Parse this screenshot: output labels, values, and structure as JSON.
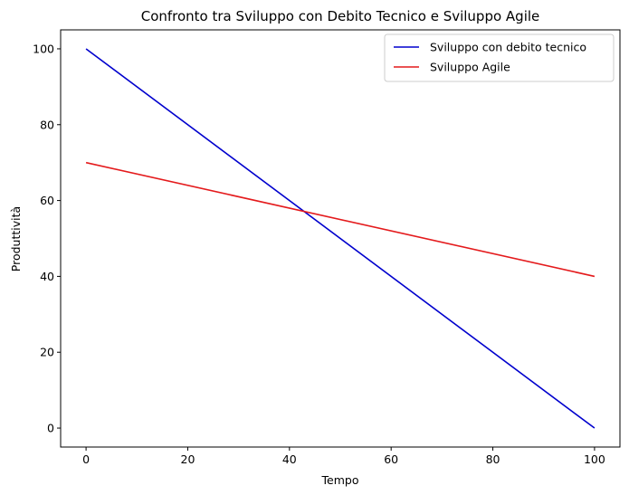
{
  "chart_data": {
    "type": "line",
    "title": "Confronto tra Sviluppo con Debito Tecnico e Sviluppo Agile",
    "xlabel": "Tempo",
    "ylabel": "Produttività",
    "xlim": [
      -5,
      105
    ],
    "ylim": [
      -5,
      105
    ],
    "xticks": [
      0,
      20,
      40,
      60,
      80,
      100
    ],
    "yticks": [
      0,
      20,
      40,
      60,
      80,
      100
    ],
    "grid": false,
    "legend_position": "top-right",
    "series": [
      {
        "name": "Sviluppo con debito tecnico",
        "color": "#0000cd",
        "x": [
          0,
          100
        ],
        "y": [
          100,
          0
        ]
      },
      {
        "name": "Sviluppo Agile",
        "color": "#e41a1c",
        "x": [
          0,
          100
        ],
        "y": [
          70,
          40
        ]
      }
    ]
  }
}
